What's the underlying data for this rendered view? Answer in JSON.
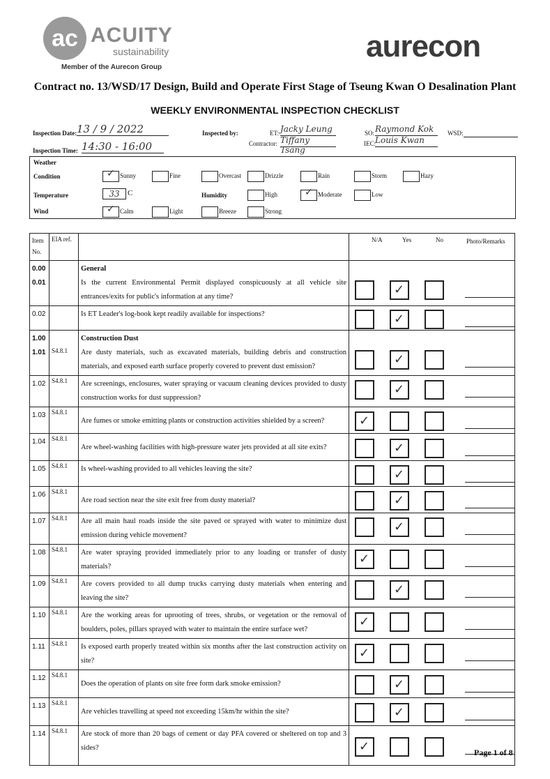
{
  "header": {
    "logo_text": "ACUITY",
    "logo_sub": "sustainability",
    "logo_member": "Member of the Aurecon Group",
    "brand": "aurecon",
    "contract": "Contract no. 13/WSD/17 Design, Build and Operate First Stage of Tseung Kwan O Desalination Plant",
    "title": "WEEKLY ENVIRONMENTAL INSPECTION CHECKLIST"
  },
  "info": {
    "date_label": "Inspection Date:",
    "date": "13 / 9 / 2022",
    "time_label": "Inspection Time:",
    "time": "14:30 - 16:00",
    "inspected_by_label": "Inspected by:",
    "et_label": "ET:",
    "et": "Jacky Leung",
    "contractor_label": "Contractor:",
    "contractor": "Tiffany Tsang",
    "so_label": "SO:",
    "so": "Raymond Kok",
    "iec_label": "IEC:",
    "iec": "Louis Kwan",
    "wsd_label": "WSD:",
    "wsd": ""
  },
  "weather": {
    "heading": "Weather",
    "condition_label": "Condition",
    "temperature_label": "Temperature",
    "temperature": "33",
    "temp_unit": "C",
    "humidity_label": "Humidity",
    "wind_label": "Wind",
    "conditions": [
      {
        "label": "Sunny",
        "checked": true
      },
      {
        "label": "Fine",
        "checked": false
      },
      {
        "label": "Overcast",
        "checked": false
      },
      {
        "label": "Drizzle",
        "checked": false
      },
      {
        "label": "Rain",
        "checked": false
      },
      {
        "label": "Storm",
        "checked": false
      },
      {
        "label": "Hazy",
        "checked": false
      }
    ],
    "humidity": [
      {
        "label": "High",
        "checked": false
      },
      {
        "label": "Moderate",
        "checked": true
      },
      {
        "label": "Low",
        "checked": false
      }
    ],
    "wind": [
      {
        "label": "Calm",
        "checked": true
      },
      {
        "label": "Light",
        "checked": false
      },
      {
        "label": "Breeze",
        "checked": false
      },
      {
        "label": "Strong",
        "checked": false
      }
    ]
  },
  "table": {
    "col_item": "Item No.",
    "col_eia": "EIA ref.",
    "col_na": "N/A",
    "col_yes": "Yes",
    "col_no": "No",
    "col_remarks": "Photo/Remarks",
    "rows": [
      {
        "item": "0.00\n0.01",
        "eia": "",
        "heading": "General",
        "q": "Is the current Environmental Permit displayed conspicuously at all vehicle site entrances/exits for public's information at any time?",
        "answer": "yes",
        "h": 60
      },
      {
        "item": "0.02",
        "eia": "",
        "heading": "",
        "q": "Is ET Leader's log-book kept readily available for inspections?",
        "answer": "yes",
        "h": 35
      },
      {
        "item": "1.00\n1.01",
        "eia": "S4.8.1",
        "heading": "Construction Dust",
        "q": "Are dusty materials, such as excavated materials, building debris and construction materials, and exposed earth surface properly covered to prevent dust emission?",
        "answer": "yes",
        "h": 60
      },
      {
        "item": "1.02",
        "eia": "S4.8.1",
        "heading": "",
        "q": "Are screenings, enclosures, water spraying or vacuum cleaning devices provided to dusty construction works for dust suppression?",
        "answer": "yes",
        "h": 38
      },
      {
        "item": "1.03",
        "eia": "S4.8.1",
        "heading": "",
        "q": "Are fumes or smoke emitting plants or construction activities shielded by a screen?",
        "answer": "na",
        "h": 38
      },
      {
        "item": "1.04",
        "eia": "S4.8.1",
        "heading": "",
        "q": "Are wheel-washing facilities with high-pressure water jets provided at all site exits?",
        "answer": "yes",
        "h": 39
      },
      {
        "item": "1.05",
        "eia": "S4.8.1",
        "heading": "",
        "q": "Is wheel-washing provided to all vehicles leaving the site?",
        "answer": "yes",
        "h": 37
      },
      {
        "item": "1.06",
        "eia": "S4.8.1",
        "heading": "",
        "q": "Are road section near the site exit free from dusty material?",
        "answer": "yes",
        "h": 38
      },
      {
        "item": "1.07",
        "eia": "S4.8.1",
        "heading": "",
        "q": "Are all main haul roads inside the site paved or sprayed with water to minimize dust emission during vehicle movement?",
        "answer": "yes",
        "h": 38
      },
      {
        "item": "1.08",
        "eia": "S4.8.1",
        "heading": "",
        "q": "Are water spraying provided immediately prior to any loading or transfer of dusty materials?",
        "answer": "na",
        "h": 39
      },
      {
        "item": "1.09",
        "eia": "S4.8.1",
        "heading": "",
        "q": "Are covers provided to all dump trucks carrying dusty materials when entering and leaving the site?",
        "answer": "yes",
        "h": 38
      },
      {
        "item": "1.10",
        "eia": "S4.8.1",
        "heading": "",
        "q": "Are the working areas for uprooting of trees, shrubs, or vegetation or the removal of boulders, poles, pillars sprayed with water to maintain the entire surface wet?",
        "answer": "na",
        "h": 40
      },
      {
        "item": "1.11",
        "eia": "S4.8.1",
        "heading": "",
        "q": "Is exposed earth properly treated within six months after the last construction activity on site?",
        "answer": "na",
        "h": 40
      },
      {
        "item": "1.12",
        "eia": "S4.8.1",
        "heading": "",
        "q": "Does the operation of plants on site free form dark smoke emission?",
        "answer": "yes",
        "h": 40
      },
      {
        "item": "1.13",
        "eia": "S4.8.1",
        "heading": "",
        "q": "Are vehicles travelling at speed not exceeding 15km/hr within the site?",
        "answer": "yes",
        "h": 40
      },
      {
        "item": "1.14",
        "eia": "S4.8.1",
        "heading": "",
        "q": "Are stock of more than 20 bags of cement or day PFA covered or sheltered on top and 3 sides?",
        "answer": "na",
        "h": 57
      }
    ]
  },
  "footer": {
    "page": "Page 1 of 8"
  }
}
